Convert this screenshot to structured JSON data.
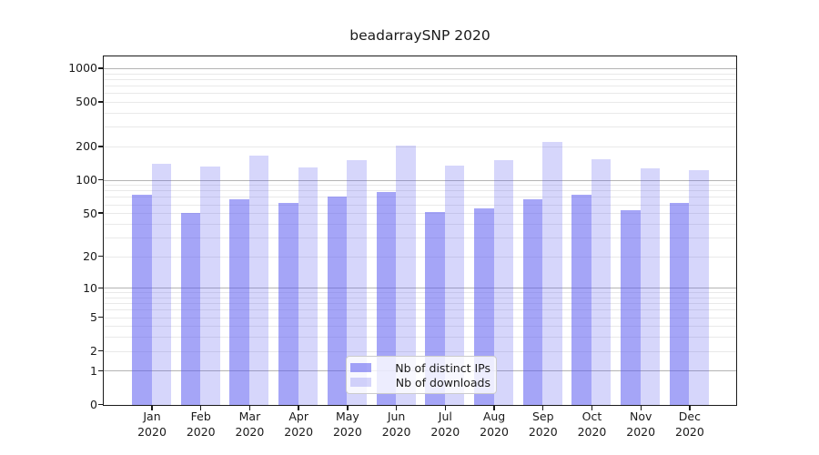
{
  "chart_data": {
    "type": "bar",
    "title": "beadarraySNP 2020",
    "categories": [
      "Jan",
      "Feb",
      "Mar",
      "Apr",
      "May",
      "Jun",
      "Jul",
      "Aug",
      "Sep",
      "Oct",
      "Nov",
      "Dec"
    ],
    "category_year": "2020",
    "series": [
      {
        "name": "Nb of distinct IPs",
        "color": "rgba(85,85,239,0.53)",
        "values": [
          74,
          51,
          68,
          63,
          72,
          78,
          52,
          56,
          67,
          74,
          54,
          63
        ]
      },
      {
        "name": "Nb of downloads",
        "color": "rgba(85,85,239,0.24)",
        "values": [
          140,
          134,
          168,
          131,
          151,
          205,
          135,
          151,
          223,
          156,
          129,
          123
        ]
      }
    ],
    "yscale": "log1p",
    "ylim": [
      0,
      1262
    ],
    "y_ticks": [
      0,
      1,
      2,
      5,
      10,
      20,
      50,
      100,
      200,
      500,
      1000
    ],
    "grid_major": [
      1,
      10,
      100,
      1000
    ],
    "grid": true,
    "legend_position": "lower center",
    "colors": {
      "grid_major": "#b4b4b4",
      "grid_minor": "#e9e9e9",
      "spine": "#1a1a1a",
      "text": "#1a1a1a",
      "background": "#ffffff"
    }
  }
}
